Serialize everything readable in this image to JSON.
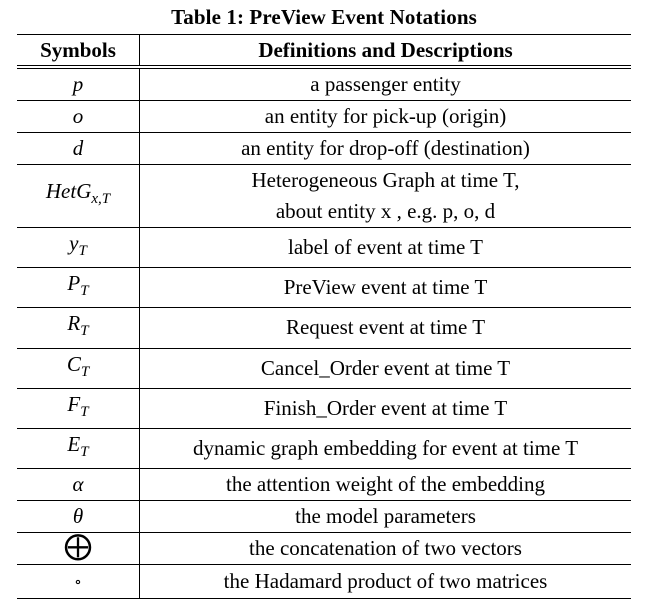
{
  "caption": "Table 1: PreView Event Notations",
  "headers": {
    "symbols": "Symbols",
    "definitions": "Definitions and Descriptions"
  },
  "rows": [
    {
      "symbol": "p",
      "sub": "",
      "definition": "a passenger entity"
    },
    {
      "symbol": "o",
      "sub": "",
      "definition": "an entity for pick-up (origin)"
    },
    {
      "symbol": "d",
      "sub": "",
      "definition": "an entity for drop-off (destination)"
    },
    {
      "symbol": "HetG",
      "sub": "x,T",
      "definition_line1": "Heterogeneous Graph at time T,",
      "definition_line2": "about entity x , e.g. p, o, d"
    },
    {
      "symbol": "y",
      "sub": "T",
      "definition": "label of event at time T"
    },
    {
      "symbol": "P",
      "sub": "T",
      "definition": "PreView event at time T"
    },
    {
      "symbol": "R",
      "sub": "T",
      "definition": "Request event at time T"
    },
    {
      "symbol": "C",
      "sub": "T",
      "definition": "Cancel_Order event at time T"
    },
    {
      "symbol": "F",
      "sub": "T",
      "definition": "Finish_Order event at time T"
    },
    {
      "symbol": "E",
      "sub": "T",
      "definition": "dynamic graph embedding for event at time T"
    },
    {
      "symbol": "α",
      "sub": "",
      "definition": "the attention weight of the embedding"
    },
    {
      "symbol": "θ",
      "sub": "",
      "definition": "the model parameters"
    },
    {
      "symbol": "⨁",
      "sub": "",
      "definition": "the concatenation of two vectors"
    },
    {
      "symbol": "∘",
      "sub": "",
      "definition": "the Hadamard product of two matrices"
    }
  ]
}
